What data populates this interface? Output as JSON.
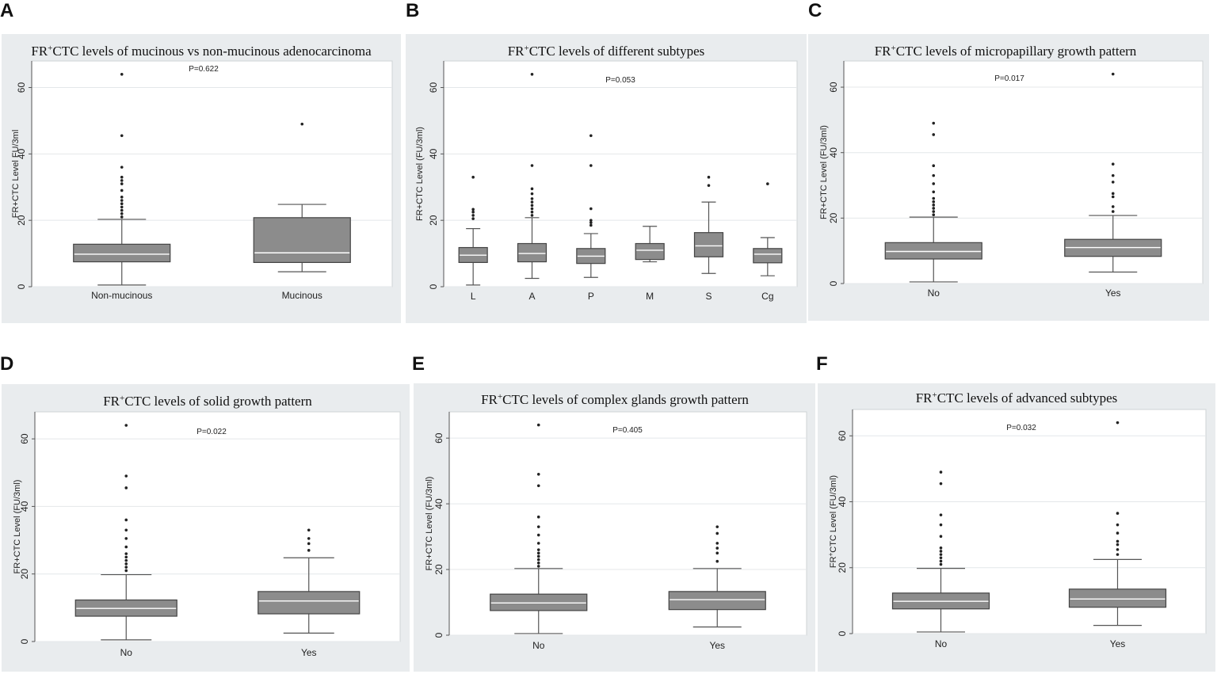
{
  "chart_data": [
    {
      "panel": "A",
      "type": "box",
      "title_prefix": "FR",
      "title_sup": "+",
      "title_rest": "CTC levels of mucinous vs non-mucinous adenocarcinoma",
      "ylabel": "FR+CTC Level FU/3ml",
      "pvalue": "P=0.622",
      "ylim": [
        0,
        68
      ],
      "yticks": [
        0,
        20,
        40,
        60
      ],
      "categories": [
        "Non-mucinous",
        "Mucinous"
      ],
      "boxes": [
        {
          "min": 0.5,
          "q1": 7.5,
          "median": 9.8,
          "q3": 12.8,
          "max": 20.3,
          "outliers": [
            21,
            22,
            23,
            24,
            25,
            26,
            27,
            29,
            31,
            32,
            33,
            36,
            45.5,
            64
          ]
        },
        {
          "min": 4.5,
          "q1": 7.3,
          "median": 10.2,
          "q3": 20.8,
          "max": 24.8,
          "outliers": [
            49
          ]
        }
      ]
    },
    {
      "panel": "B",
      "type": "box",
      "title_prefix": "FR",
      "title_sup": "+",
      "title_rest": "CTC levels of different subtypes",
      "ylabel": "FR+CTC Level (FU/3ml)",
      "pvalue": "P=0.053",
      "ylim": [
        0,
        68
      ],
      "yticks": [
        0,
        20,
        40,
        60
      ],
      "categories": [
        "L",
        "A",
        "P",
        "M",
        "S",
        "Cg"
      ],
      "boxes": [
        {
          "min": 0.5,
          "q1": 7.3,
          "median": 9.5,
          "q3": 11.8,
          "max": 17.5,
          "outliers": [
            20.5,
            21.5,
            22.5,
            23.3,
            33
          ]
        },
        {
          "min": 2.5,
          "q1": 7.5,
          "median": 10,
          "q3": 13,
          "max": 20.8,
          "outliers": [
            21.5,
            22.5,
            23.5,
            24.5,
            25.5,
            26.5,
            28,
            29.5,
            36.5,
            64
          ]
        },
        {
          "min": 2.8,
          "q1": 7,
          "median": 9.2,
          "q3": 11.5,
          "max": 16,
          "outliers": [
            18.5,
            19.3,
            20,
            23.5,
            36.5,
            45.5
          ]
        },
        {
          "min": 7.5,
          "q1": 8.2,
          "median": 11,
          "q3": 13,
          "max": 18.2,
          "outliers": []
        },
        {
          "min": 4,
          "q1": 9,
          "median": 12.3,
          "q3": 16.3,
          "max": 25.5,
          "outliers": [
            30.5,
            33
          ]
        },
        {
          "min": 3.3,
          "q1": 7.2,
          "median": 9.8,
          "q3": 11.5,
          "max": 14.8,
          "outliers": [
            31
          ]
        }
      ]
    },
    {
      "panel": "C",
      "type": "box",
      "title_prefix": "FR",
      "title_sup": "+",
      "title_rest": "CTC levels of micropapillary growth pattern",
      "ylabel": "FR+CTC Level (FU/3ml)",
      "pvalue": "P=0.017",
      "ylim": [
        0,
        68
      ],
      "yticks": [
        0,
        20,
        40,
        60
      ],
      "categories": [
        "No",
        "Yes"
      ],
      "boxes": [
        {
          "min": 0.5,
          "q1": 7.5,
          "median": 9.8,
          "q3": 12.5,
          "max": 20.3,
          "outliers": [
            21,
            22,
            23,
            24,
            25,
            26,
            28,
            30.5,
            33,
            36,
            45.5,
            49
          ]
        },
        {
          "min": 3.5,
          "q1": 8.3,
          "median": 11,
          "q3": 13.5,
          "max": 20.8,
          "outliers": [
            22,
            23.5,
            26.5,
            27.5,
            31,
            33,
            36.5,
            64
          ]
        }
      ]
    },
    {
      "panel": "D",
      "type": "box",
      "title_prefix": "FR",
      "title_sup": "+",
      "title_rest": "CTC levels of solid growth pattern",
      "ylabel": "FR+CTC Level (FU/3ml)",
      "pvalue": "P=0.022",
      "ylim": [
        0,
        68
      ],
      "yticks": [
        0,
        20,
        40,
        60
      ],
      "categories": [
        "No",
        "Yes"
      ],
      "boxes": [
        {
          "min": 0.5,
          "q1": 7.5,
          "median": 9.8,
          "q3": 12.3,
          "max": 19.8,
          "outliers": [
            21,
            22,
            23,
            24,
            25,
            26,
            28,
            30.5,
            33,
            36,
            45.5,
            49,
            64
          ]
        },
        {
          "min": 2.5,
          "q1": 8.2,
          "median": 12,
          "q3": 14.8,
          "max": 24.8,
          "outliers": [
            27,
            29,
            30.5,
            33
          ]
        }
      ]
    },
    {
      "panel": "E",
      "type": "box",
      "title_prefix": "FR",
      "title_sup": "+",
      "title_rest": "CTC levels of complex glands growth pattern",
      "ylabel": "FR+CTC Level (FU/3ml)",
      "pvalue": "P=0.405",
      "ylim": [
        0,
        68
      ],
      "yticks": [
        0,
        20,
        40,
        60
      ],
      "categories": [
        "No",
        "Yes"
      ],
      "boxes": [
        {
          "min": 0.5,
          "q1": 7.5,
          "median": 9.8,
          "q3": 12.5,
          "max": 20.3,
          "outliers": [
            21,
            22,
            23,
            24,
            25,
            26,
            28,
            30.5,
            33,
            36,
            45.5,
            49,
            64
          ]
        },
        {
          "min": 2.5,
          "q1": 7.8,
          "median": 10.8,
          "q3": 13.3,
          "max": 20.3,
          "outliers": [
            22.5,
            25,
            26.5,
            28,
            31,
            33
          ]
        }
      ]
    },
    {
      "panel": "F",
      "type": "box",
      "title_prefix": "FR",
      "title_sup": "+",
      "title_rest": "CTC levels of advanced subtypes",
      "ylabel": "FR",
      "ylabel_sup": "+",
      "ylabel_rest": "CTC Level (FU/3ml)",
      "pvalue": "P=0.032",
      "ylim": [
        0,
        68
      ],
      "yticks": [
        0,
        20,
        40,
        60
      ],
      "categories": [
        "No",
        "Yes"
      ],
      "boxes": [
        {
          "min": 0.5,
          "q1": 7.5,
          "median": 9.8,
          "q3": 12.3,
          "max": 19.8,
          "outliers": [
            21,
            22,
            23,
            24,
            25,
            26,
            29.5,
            33,
            36,
            45.5,
            49
          ]
        },
        {
          "min": 2.5,
          "q1": 8,
          "median": 10.5,
          "q3": 13.5,
          "max": 22.5,
          "outliers": [
            24,
            25.5,
            27,
            28,
            30.5,
            33,
            36.5,
            64
          ]
        }
      ]
    }
  ]
}
